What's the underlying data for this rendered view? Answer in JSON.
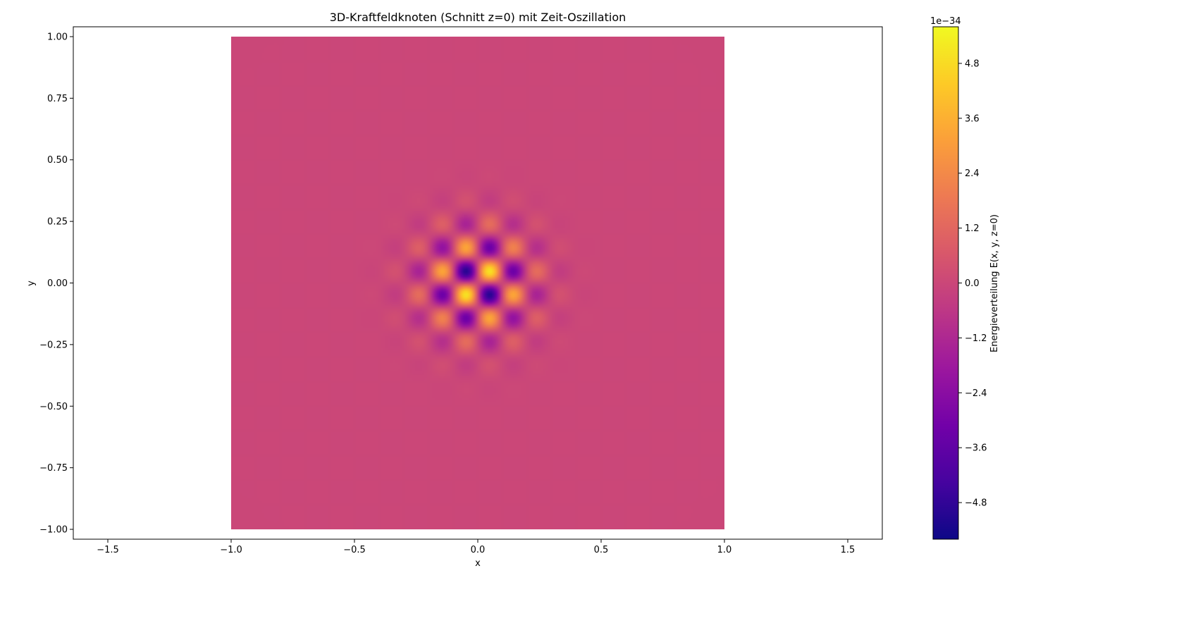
{
  "chart_data": {
    "type": "heatmap",
    "title": "3D-Kraftfeldknoten (Schnitt z=0) mit Zeit-Oszillation",
    "xlabel": "x",
    "ylabel": "y",
    "xlim": [
      -1.64,
      1.64
    ],
    "ylim": [
      -1.04,
      1.04
    ],
    "xticks": [
      -1.5,
      -1.0,
      -0.5,
      0.0,
      0.5,
      1.0,
      1.5
    ],
    "xtick_labels": [
      "−1.5",
      "−1.0",
      "−0.5",
      "0.0",
      "0.5",
      "1.0",
      "1.5"
    ],
    "yticks": [
      1.0,
      0.75,
      0.5,
      0.25,
      0.0,
      -0.25,
      -0.5,
      -0.75,
      -1.0
    ],
    "ytick_labels": [
      "1.00",
      "0.75",
      "0.50",
      "0.25",
      "0.00",
      "−0.25",
      "−0.50",
      "−0.75",
      "−1.00"
    ],
    "data_extent": {
      "x": [
        -1.0,
        1.0
      ],
      "y": [
        -1.0,
        1.0
      ]
    },
    "field": {
      "grid_size": 20,
      "cell_size": 0.1,
      "pattern": "checkerboard standing wave with Gaussian envelope, centered at origin",
      "gaussian_sigma": 0.15,
      "peak_value": 5.6e-34,
      "sign_at_cell_x_pos_y_pos": 1
    },
    "colormap": "plasma",
    "colorbar": {
      "label": "Energieverteilung E(x, y, z=0)",
      "offset_text": "1e−34",
      "range": [
        -5.6,
        5.6
      ],
      "ticks": [
        4.8,
        3.6,
        2.4,
        1.2,
        0.0,
        -1.2,
        -2.4,
        -3.6,
        -4.8
      ],
      "tick_labels": [
        "4.8",
        "3.6",
        "2.4",
        "1.2",
        "0.0",
        "−1.2",
        "−2.4",
        "−3.6",
        "−4.8"
      ]
    },
    "grid": false,
    "legend": "none"
  },
  "colors": {
    "plasma": [
      "#0d0887",
      "#46039f",
      "#7201a8",
      "#9c179e",
      "#bd3786",
      "#d8576b",
      "#ed7953",
      "#fb9f3a",
      "#fdca26",
      "#f0f921"
    ]
  }
}
